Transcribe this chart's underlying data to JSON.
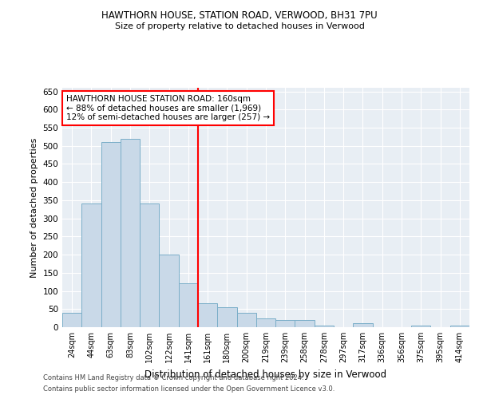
{
  "title1": "HAWTHORN HOUSE, STATION ROAD, VERWOOD, BH31 7PU",
  "title2": "Size of property relative to detached houses in Verwood",
  "xlabel": "Distribution of detached houses by size in Verwood",
  "ylabel": "Number of detached properties",
  "footnote1": "Contains HM Land Registry data © Crown copyright and database right 2024.",
  "footnote2": "Contains public sector information licensed under the Open Government Licence v3.0.",
  "bar_labels": [
    "24sqm",
    "44sqm",
    "63sqm",
    "83sqm",
    "102sqm",
    "122sqm",
    "141sqm",
    "161sqm",
    "180sqm",
    "200sqm",
    "219sqm",
    "239sqm",
    "258sqm",
    "278sqm",
    "297sqm",
    "317sqm",
    "336sqm",
    "356sqm",
    "375sqm",
    "395sqm",
    "414sqm"
  ],
  "bar_values": [
    40,
    340,
    510,
    520,
    340,
    200,
    120,
    65,
    55,
    40,
    25,
    20,
    20,
    5,
    0,
    10,
    0,
    0,
    5,
    0,
    5
  ],
  "bar_color": "#c9d9e8",
  "bar_edgecolor": "#7aaec8",
  "vline_color": "red",
  "ylim": [
    0,
    660
  ],
  "yticks": [
    0,
    50,
    100,
    150,
    200,
    250,
    300,
    350,
    400,
    450,
    500,
    550,
    600,
    650
  ],
  "legend_text": "HAWTHORN HOUSE STATION ROAD: 160sqm\n← 88% of detached houses are smaller (1,969)\n12% of semi-detached houses are larger (257) →",
  "bg_color": "#e8eef4",
  "grid_color": "#ffffff"
}
